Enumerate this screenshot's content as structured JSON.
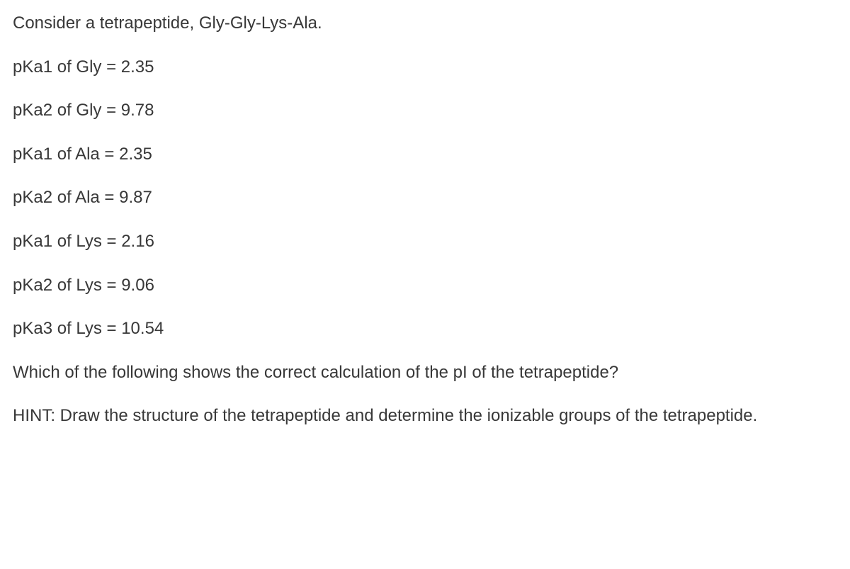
{
  "intro": "Consider a tetrapeptide, Gly-Gly-Lys-Ala.",
  "pka": [
    "pKa1 of Gly = 2.35",
    "pKa2 of Gly = 9.78",
    "pKa1 of Ala = 2.35",
    "pKa2 of Ala = 9.87",
    "pKa1 of Lys = 2.16",
    "pKa2 of Lys = 9.06",
    "pKa3 of Lys = 10.54"
  ],
  "question": "Which of the following shows the correct calculation of the pI of the tetrapeptide?",
  "hint": "HINT: Draw the structure of the tetrapeptide and determine the ionizable groups of the tetrapeptide."
}
